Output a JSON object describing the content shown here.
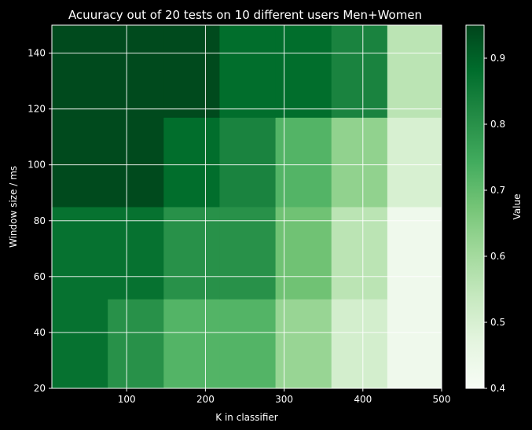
{
  "chart_data": {
    "type": "heatmap",
    "title": "Acuuracy out of 20 tests on 10 different users Men+Women",
    "xlabel": "K in classifier",
    "ylabel": "Window size / ms",
    "colorbar_label": "Value",
    "xlim": [
      5,
      500
    ],
    "ylim": [
      20,
      150
    ],
    "x_ticks": [
      100,
      200,
      300,
      400,
      500
    ],
    "y_ticks": [
      20,
      40,
      60,
      80,
      100,
      120,
      140
    ],
    "colorbar_range": [
      0.4,
      0.95
    ],
    "colorbar_ticks": [
      0.4,
      0.5,
      0.6,
      0.7,
      0.8,
      0.9
    ],
    "grid": true,
    "colormap": "Greens",
    "x_edges": [
      5,
      76,
      147,
      218,
      289,
      360,
      431,
      500
    ],
    "y_edges": [
      20,
      52,
      85,
      117,
      150
    ],
    "values": [
      [
        0.87,
        0.8,
        0.72,
        0.72,
        0.62,
        0.51,
        0.43
      ],
      [
        0.87,
        0.87,
        0.8,
        0.8,
        0.68,
        0.56,
        0.43
      ],
      [
        0.94,
        0.94,
        0.88,
        0.83,
        0.72,
        0.63,
        0.5
      ],
      [
        0.94,
        0.94,
        0.94,
        0.88,
        0.88,
        0.83,
        0.56
      ]
    ]
  }
}
